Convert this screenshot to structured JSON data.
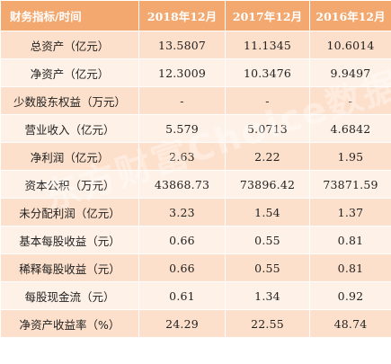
{
  "table": {
    "headers": [
      "财务指标/时间",
      "2018年12月",
      "2017年12月",
      "2016年12月"
    ],
    "rows": [
      {
        "label": "总资产（亿元）",
        "values": [
          "13.5807",
          "11.1345",
          "10.6014"
        ]
      },
      {
        "label": "净资产（亿元）",
        "values": [
          "12.3009",
          "10.3476",
          "9.9497"
        ]
      },
      {
        "label": "少数股东权益（万元）",
        "values": [
          "-",
          "-",
          "-"
        ]
      },
      {
        "label": "营业收入（亿元）",
        "values": [
          "5.579",
          "5.0713",
          "4.6842"
        ]
      },
      {
        "label": "净利润（亿元）",
        "values": [
          "2.63",
          "2.22",
          "1.95"
        ]
      },
      {
        "label": "资本公积（万元）",
        "values": [
          "43868.73",
          "73896.42",
          "73871.59"
        ]
      },
      {
        "label": "未分配利润（亿元）",
        "values": [
          "3.23",
          "1.54",
          "1.37"
        ]
      },
      {
        "label": "基本每股收益（元）",
        "values": [
          "0.66",
          "0.55",
          "0.81"
        ]
      },
      {
        "label": "稀释每股收益（元）",
        "values": [
          "0.66",
          "0.55",
          "0.81"
        ]
      },
      {
        "label": "每股现金流（元）",
        "values": [
          "0.61",
          "1.34",
          "0.92"
        ]
      },
      {
        "label": "净资产收益率（%）",
        "values": [
          "24.29",
          "22.55",
          "48.74"
        ]
      }
    ]
  },
  "watermark": {
    "text": "东方财富Choice数据"
  },
  "colors": {
    "header_bg": "#f3a86f",
    "row_odd_bg": "#fde0cb",
    "row_even_bg": "#fef1e7"
  }
}
